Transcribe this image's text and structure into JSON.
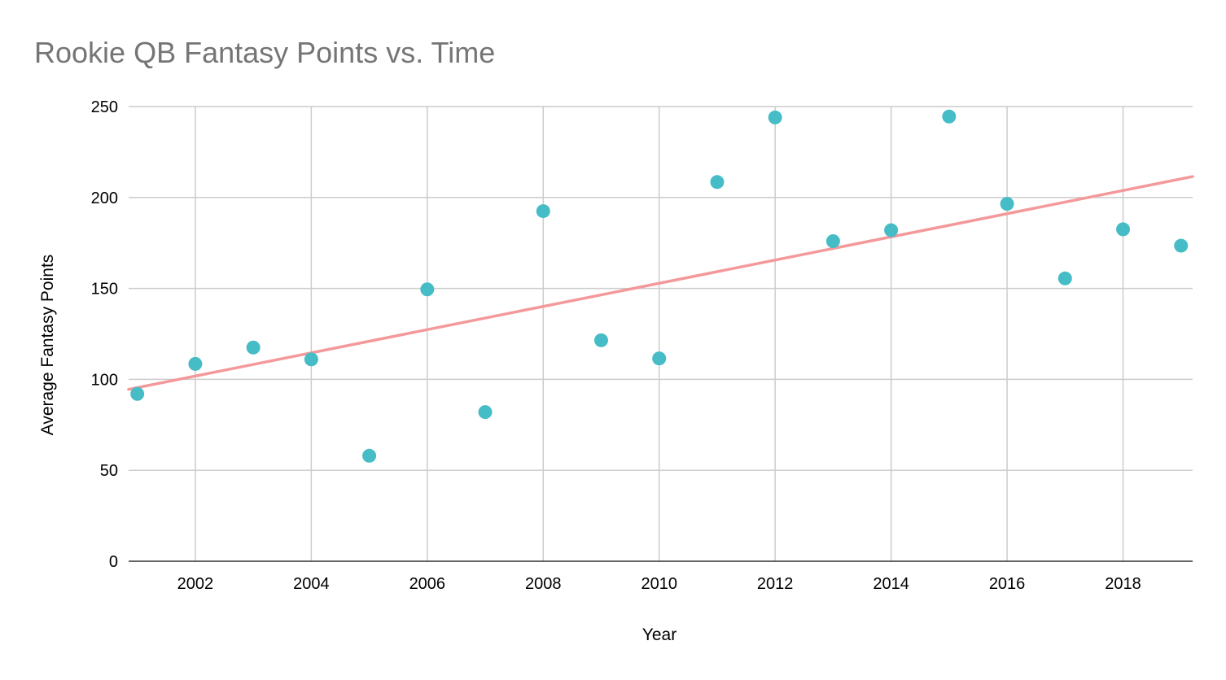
{
  "chart_data": {
    "type": "scatter",
    "title": "Rookie QB Fantasy Points vs. Time",
    "xlabel": "Year",
    "ylabel": "Average Fantasy Points",
    "xlim": [
      2000.85,
      2019.2
    ],
    "ylim": [
      0,
      250
    ],
    "x_ticks": [
      2002,
      2004,
      2006,
      2008,
      2010,
      2012,
      2014,
      2016,
      2018
    ],
    "y_ticks": [
      0,
      50,
      100,
      150,
      200,
      250
    ],
    "grid": true,
    "legend": "none",
    "series": [
      {
        "x": [
          2001,
          2002,
          2003,
          2004,
          2005,
          2006,
          2007,
          2008,
          2009,
          2010,
          2011,
          2012,
          2013,
          2014,
          2015,
          2016,
          2017,
          2018,
          2019
        ],
        "y": [
          92,
          108.5,
          117.5,
          111,
          58,
          149.5,
          82,
          192.5,
          121.5,
          111.5,
          208.5,
          244,
          176,
          182,
          244.5,
          196.5,
          155.5,
          182.5,
          173.5
        ],
        "color": "#46BDC6"
      }
    ],
    "trendline": {
      "type": "linear",
      "y_at_xmin": 94.5,
      "y_at_xmax": 211.5,
      "color": "#F4999A"
    }
  }
}
